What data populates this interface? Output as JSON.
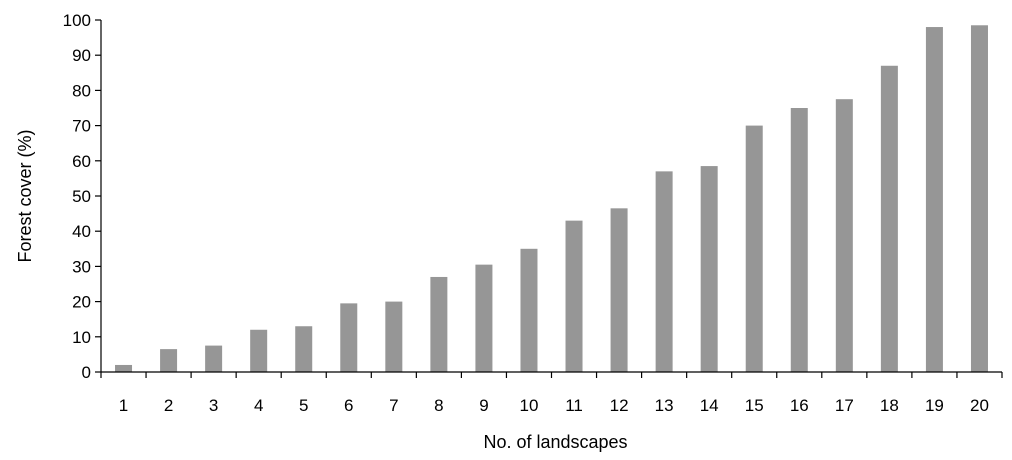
{
  "chart_data": {
    "type": "bar",
    "title": "",
    "xlabel": "No. of landscapes",
    "ylabel": "Forest cover (%)",
    "ylim": [
      0,
      100
    ],
    "yticks": [
      0,
      10,
      20,
      30,
      40,
      50,
      60,
      70,
      80,
      90,
      100
    ],
    "grid": false,
    "categories": [
      "1",
      "2",
      "3",
      "4",
      "5",
      "6",
      "7",
      "8",
      "9",
      "10",
      "11",
      "12",
      "13",
      "14",
      "15",
      "16",
      "17",
      "18",
      "19",
      "20"
    ],
    "values": [
      2,
      6.5,
      7.5,
      12,
      13,
      19.5,
      20,
      27,
      30.5,
      35,
      43,
      46.5,
      57,
      58.5,
      70,
      75,
      77.5,
      87,
      98,
      98.5
    ],
    "bar_color": "#969696",
    "axis_color": "#000000"
  }
}
